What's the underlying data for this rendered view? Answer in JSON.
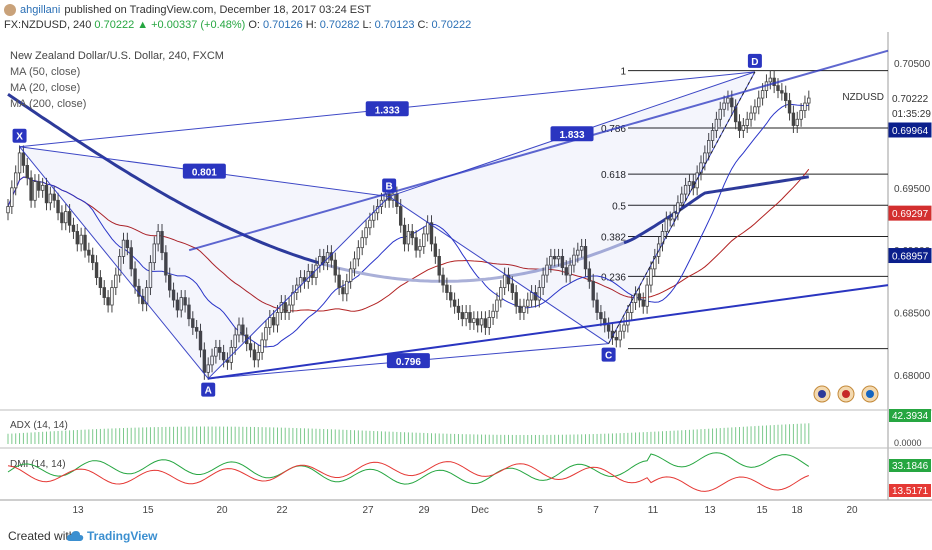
{
  "header": {
    "user": "ahgillani",
    "published": "published on TradingView.com, December 18, 2017 03:24 EST",
    "symbol": "FX:NZDUSD, 240",
    "last": "0.70222",
    "change": "▲ +0.00337 (+0.48%)",
    "o_label": "O:",
    "o": "0.70126",
    "h_label": "H:",
    "h": "0.70282",
    "l_label": "L:",
    "l": "0.70123",
    "c_label": "C:",
    "c": "0.70222"
  },
  "legend": {
    "title": "New Zealand Dollar/U.S. Dollar, 240, FXCM",
    "ma50": "MA (50, close)",
    "ma20": "MA (20, close)",
    "ma200": "MA (200, close)"
  },
  "symbol_tag": "NZDUSD",
  "countdown": "01:35:29",
  "footer": {
    "created": "Created with",
    "brand": "TradingView"
  },
  "colors": {
    "up": "#26a641",
    "candle": "#444444",
    "ma20": "#2b35c9",
    "ma50": "#b22222",
    "ma200": "#2d3a9a",
    "pattern": "#2a35c0",
    "price_tag": "#0b1f8c",
    "ma50_tag": "#d32f2f",
    "adx": "#26a641",
    "dmi_plus": "#26a641",
    "dmi_minus": "#e53935"
  },
  "chart_data": {
    "type": "candlestick",
    "title": "New Zealand Dollar/U.S. Dollar, 240, FXCM",
    "ylim": [
      0.6775,
      0.7075
    ],
    "y_ticks": [
      "0.70500",
      "0.70000",
      "0.69500",
      "0.69000",
      "0.68500",
      "0.68000"
    ],
    "x_ticks": [
      "13",
      "15",
      "20",
      "22",
      "27",
      "29",
      "Dec",
      "5",
      "7",
      "11",
      "13",
      "15",
      "18",
      "20"
    ],
    "price_labels": {
      "last": "0.70222",
      "ma20": "0.69964",
      "ma50": "0.69297",
      "ma200": "0.68957"
    },
    "fib_levels": [
      {
        "label": "1",
        "price": 0.7044
      },
      {
        "label": "0.786",
        "price": 0.6998
      },
      {
        "label": "0.618",
        "price": 0.6961
      },
      {
        "label": "0.5",
        "price": 0.6936
      },
      {
        "label": "0.382",
        "price": 0.6911
      },
      {
        "label": "0.236",
        "price": 0.6879
      },
      {
        "label": "",
        "price": 0.6821
      }
    ],
    "xabcd": [
      {
        "label": "X",
        "i": 3,
        "price": 0.6983
      },
      {
        "label": "A",
        "i": 52,
        "price": 0.6797
      },
      {
        "label": "B",
        "i": 99,
        "price": 0.6943
      },
      {
        "label": "C",
        "i": 156,
        "price": 0.6825
      },
      {
        "label": "D",
        "i": 194,
        "price": 0.7043
      }
    ],
    "ratios": [
      "1.333",
      "0.801",
      "1.833",
      "0.796"
    ],
    "closes": [
      0.6935,
      0.695,
      0.6962,
      0.6978,
      0.6968,
      0.6958,
      0.694,
      0.6955,
      0.6948,
      0.6952,
      0.6938,
      0.6945,
      0.694,
      0.693,
      0.6922,
      0.6931,
      0.692,
      0.6915,
      0.6905,
      0.6912,
      0.69,
      0.6896,
      0.689,
      0.6878,
      0.687,
      0.6862,
      0.6856,
      0.687,
      0.688,
      0.6895,
      0.6908,
      0.6902,
      0.6885,
      0.6871,
      0.6863,
      0.6857,
      0.687,
      0.689,
      0.6905,
      0.6915,
      0.6898,
      0.688,
      0.6868,
      0.686,
      0.6852,
      0.6862,
      0.6856,
      0.6845,
      0.6838,
      0.6835,
      0.682,
      0.6802,
      0.6808,
      0.6815,
      0.6822,
      0.6818,
      0.6812,
      0.681,
      0.6822,
      0.6832,
      0.684,
      0.6832,
      0.6825,
      0.682,
      0.6812,
      0.6818,
      0.6828,
      0.6838,
      0.6846,
      0.684,
      0.685,
      0.6858,
      0.685,
      0.6856,
      0.6866,
      0.6872,
      0.6878,
      0.6875,
      0.6883,
      0.6878,
      0.6888,
      0.6895,
      0.689,
      0.6898,
      0.6892,
      0.688,
      0.687,
      0.6865,
      0.6875,
      0.6885,
      0.6893,
      0.6902,
      0.691,
      0.6918,
      0.6924,
      0.693,
      0.6935,
      0.694,
      0.6945,
      0.694,
      0.6945,
      0.6935,
      0.692,
      0.6905,
      0.6915,
      0.691,
      0.69,
      0.6903,
      0.6913,
      0.6922,
      0.6905,
      0.6895,
      0.688,
      0.6872,
      0.6866,
      0.686,
      0.6855,
      0.685,
      0.6845,
      0.685,
      0.6842,
      0.6845,
      0.684,
      0.6845,
      0.6838,
      0.6846,
      0.6851,
      0.686,
      0.687,
      0.688,
      0.6873,
      0.6866,
      0.6855,
      0.685,
      0.6855,
      0.686,
      0.6866,
      0.686,
      0.687,
      0.688,
      0.6888,
      0.6895,
      0.6893,
      0.6895,
      0.6886,
      0.688,
      0.6888,
      0.6896,
      0.69,
      0.6903,
      0.6885,
      0.6875,
      0.686,
      0.685,
      0.6845,
      0.684,
      0.6835,
      0.683,
      0.6828,
      0.6835,
      0.684,
      0.685,
      0.6858,
      0.6865,
      0.686,
      0.6855,
      0.6872,
      0.6885,
      0.6895,
      0.6905,
      0.6915,
      0.6925,
      0.6925,
      0.693,
      0.6938,
      0.6945,
      0.6952,
      0.6955,
      0.695,
      0.6962,
      0.697,
      0.6978,
      0.6988,
      0.6996,
      0.7005,
      0.7013,
      0.7018,
      0.7022,
      0.7015,
      0.7003,
      0.6996,
      0.7,
      0.7005,
      0.701,
      0.7015,
      0.7022,
      0.7028,
      0.7035,
      0.7038,
      0.7032,
      0.7028,
      0.7026,
      0.702,
      0.701,
      0.7,
      0.7005,
      0.7012,
      0.7018,
      0.7022
    ],
    "adx": {
      "label": "ADX (14, 14)",
      "value": "42.3934",
      "zero": "0.0000"
    },
    "dmi": {
      "label": "DMI (14, 14)",
      "plus_value": "33.1846",
      "minus_value": "13.5171"
    }
  }
}
